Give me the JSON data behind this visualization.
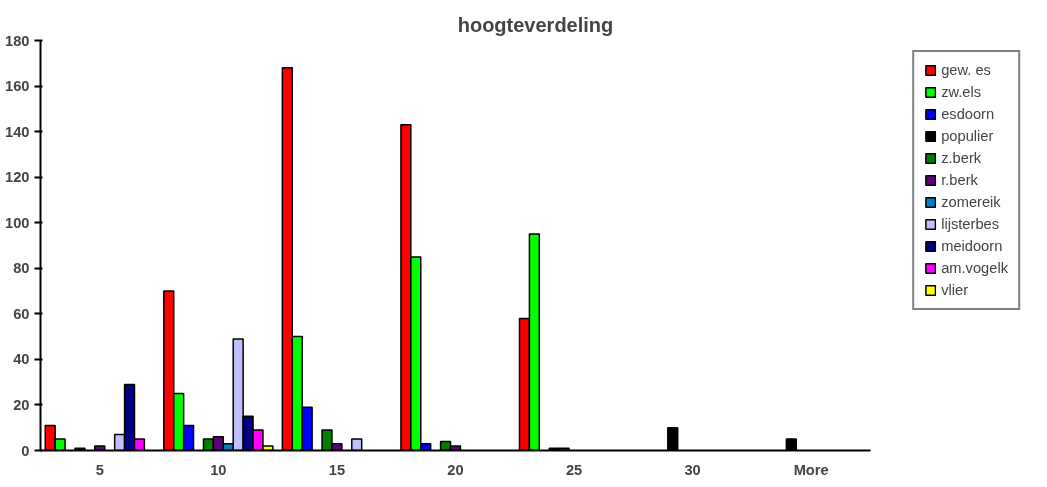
{
  "chart_data": {
    "type": "bar",
    "title": "hoogteverdeling",
    "categories": [
      "5",
      "10",
      "15",
      "20",
      "25",
      "30",
      "More"
    ],
    "ylim": [
      0,
      180
    ],
    "yticks": [
      0,
      20,
      40,
      60,
      80,
      100,
      120,
      140,
      160,
      180
    ],
    "grid": false,
    "legend": "right",
    "series": [
      {
        "name": "gew. es",
        "color": "#ff0000",
        "values": [
          11,
          70,
          168,
          143,
          58,
          null,
          null
        ]
      },
      {
        "name": "zw.els",
        "color": "#00ff00",
        "values": [
          5,
          25,
          50,
          85,
          95,
          null,
          null
        ]
      },
      {
        "name": "esdoorn",
        "color": "#0000ff",
        "values": [
          null,
          11,
          19,
          3,
          null,
          null,
          null
        ]
      },
      {
        "name": "populier",
        "color": "#000000",
        "values": [
          1,
          null,
          null,
          null,
          1,
          10,
          5
        ]
      },
      {
        "name": "z.berk",
        "color": "#008000",
        "values": [
          null,
          5,
          9,
          4,
          1,
          null,
          null
        ]
      },
      {
        "name": "r.berk",
        "color": "#600080",
        "values": [
          2,
          6,
          3,
          2,
          null,
          null,
          null
        ]
      },
      {
        "name": "zomereik",
        "color": "#0080c0",
        "values": [
          null,
          3,
          null,
          null,
          null,
          null,
          null
        ]
      },
      {
        "name": "lijsterbes",
        "color": "#c0c0ff",
        "values": [
          7,
          49,
          5,
          null,
          null,
          null,
          null
        ]
      },
      {
        "name": "meidoorn",
        "color": "#000080",
        "values": [
          29,
          15,
          null,
          null,
          null,
          null,
          null
        ]
      },
      {
        "name": "am.vogelk",
        "color": "#ff00ff",
        "values": [
          5,
          9,
          null,
          null,
          null,
          null,
          null
        ]
      },
      {
        "name": "vlier",
        "color": "#ffff00",
        "values": [
          null,
          2,
          null,
          null,
          null,
          null,
          null
        ]
      }
    ]
  }
}
